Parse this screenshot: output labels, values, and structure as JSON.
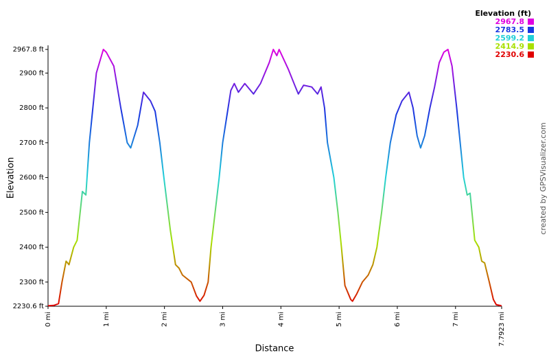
{
  "chart_data": {
    "type": "line",
    "y_label": "Elevation",
    "x_label": "Distance",
    "credit": "created by GPSVisualizer.com",
    "legend_title": "Elevation (ft)",
    "colorscale": [
      {
        "value": 2967.8,
        "color": "#e000e0"
      },
      {
        "value": 2783.5,
        "color": "#1838e0"
      },
      {
        "value": 2599.2,
        "color": "#20d0d8"
      },
      {
        "value": 2414.9,
        "color": "#a8e000"
      },
      {
        "value": 2230.6,
        "color": "#e00000"
      }
    ],
    "xlim": [
      0,
      7.7923
    ],
    "ylim": [
      2230.6,
      2967.8
    ],
    "xticks": [
      {
        "value": 0,
        "label": "0 mi"
      },
      {
        "value": 1,
        "label": "1 mi"
      },
      {
        "value": 2,
        "label": "2 mi"
      },
      {
        "value": 3,
        "label": "3 mi"
      },
      {
        "value": 4,
        "label": "4 mi"
      },
      {
        "value": 5,
        "label": "5 mi"
      },
      {
        "value": 6,
        "label": "6 mi"
      },
      {
        "value": 7,
        "label": "7 mi"
      },
      {
        "value": 7.7923,
        "label": "7.7923 mi"
      }
    ],
    "yticks": [
      {
        "value": 2230.6,
        "label": "2230.6 ft"
      },
      {
        "value": 2300,
        "label": "2300 ft"
      },
      {
        "value": 2400,
        "label": "2400 ft"
      },
      {
        "value": 2500,
        "label": "2500 ft"
      },
      {
        "value": 2600,
        "label": "2600 ft"
      },
      {
        "value": 2700,
        "label": "2700 ft"
      },
      {
        "value": 2800,
        "label": "2800 ft"
      },
      {
        "value": 2900,
        "label": "2900 ft"
      },
      {
        "value": 2967.8,
        "label": "2967.8 ft"
      }
    ],
    "x": [
      0,
      0.1,
      0.18,
      0.24,
      0.31,
      0.36,
      0.44,
      0.5,
      0.59,
      0.65,
      0.71,
      0.83,
      0.95,
      1.0,
      1.13,
      1.25,
      1.36,
      1.42,
      1.54,
      1.64,
      1.76,
      1.84,
      1.92,
      1.99,
      2.1,
      2.19,
      2.25,
      2.31,
      2.46,
      2.55,
      2.61,
      2.68,
      2.75,
      2.8,
      2.94,
      3.0,
      3.14,
      3.2,
      3.27,
      3.38,
      3.53,
      3.65,
      3.8,
      3.87,
      3.93,
      3.97,
      4.13,
      4.25,
      4.3,
      4.39,
      4.53,
      4.63,
      4.69,
      4.75,
      4.8,
      4.91,
      4.98,
      5.04,
      5.1,
      5.2,
      5.23,
      5.3,
      5.4,
      5.5,
      5.58,
      5.65,
      5.73,
      5.8,
      5.88,
      5.98,
      6.08,
      6.2,
      6.27,
      6.34,
      6.4,
      6.47,
      6.56,
      6.64,
      6.72,
      6.8,
      6.87,
      6.94,
      7.02,
      7.08,
      7.14,
      7.2,
      7.25,
      7.33,
      7.4,
      7.45,
      7.5,
      7.58,
      7.65,
      7.7,
      7.79
    ],
    "values": [
      2232,
      2233,
      2238,
      2300,
      2360,
      2350,
      2400,
      2420,
      2560,
      2550,
      2700,
      2900,
      2967.8,
      2960,
      2920,
      2800,
      2700,
      2685,
      2750,
      2845,
      2820,
      2790,
      2700,
      2600,
      2450,
      2350,
      2340,
      2320,
      2300,
      2260,
      2245,
      2262,
      2300,
      2400,
      2600,
      2700,
      2850,
      2870,
      2845,
      2870,
      2840,
      2870,
      2930,
      2967.8,
      2950,
      2967.8,
      2910,
      2860,
      2840,
      2865,
      2860,
      2840,
      2860,
      2800,
      2700,
      2600,
      2500,
      2400,
      2290,
      2250,
      2245,
      2265,
      2300,
      2320,
      2350,
      2400,
      2500,
      2600,
      2700,
      2780,
      2820,
      2845,
      2800,
      2720,
      2685,
      2720,
      2800,
      2860,
      2930,
      2960,
      2967.8,
      2920,
      2800,
      2700,
      2600,
      2550,
      2555,
      2420,
      2400,
      2360,
      2355,
      2300,
      2250,
      2235,
      2232
    ]
  }
}
